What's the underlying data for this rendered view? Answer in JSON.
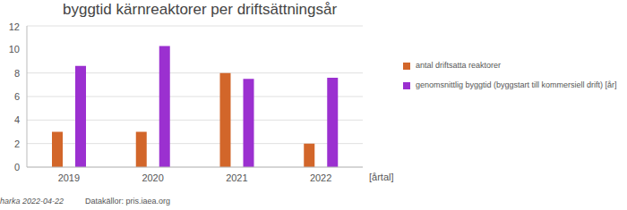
{
  "chart_data": {
    "type": "bar",
    "title": "byggtid kärnreaktorer per driftsättningsår",
    "categories": [
      "2019",
      "2020",
      "2021",
      "2022"
    ],
    "series": [
      {
        "name": "antal driftsatta reaktorer",
        "color": "#d2662a",
        "values": [
          3,
          3,
          8,
          2
        ]
      },
      {
        "name": "genomsnittlig byggtid (byggstart till kommersiell drift) [år]",
        "color": "#9b30d0",
        "values": [
          8.6,
          10.3,
          7.5,
          7.6
        ]
      }
    ],
    "xlabel": "[årtal]",
    "ylim": [
      0,
      12
    ],
    "yticks": [
      0,
      2,
      4,
      6,
      8,
      10,
      12
    ],
    "grid": true,
    "legend": "right",
    "author": "harka 2022-04-22",
    "source": "Datakällor: pris.iaea.org"
  }
}
